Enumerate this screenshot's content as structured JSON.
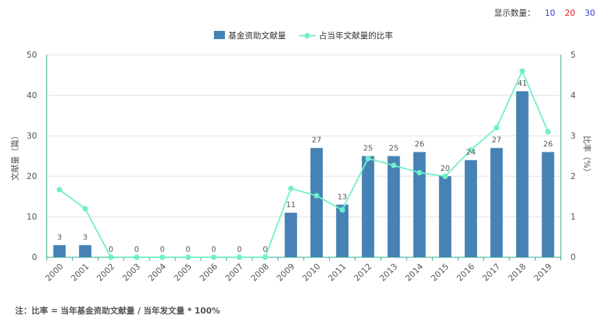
{
  "display_count": {
    "label": "显示数量：",
    "options": [
      {
        "text": "10",
        "color": "#3a3acb"
      },
      {
        "text": "20",
        "color": "#e02020"
      },
      {
        "text": "30",
        "color": "#3a3acb"
      }
    ]
  },
  "footnote": "注：比率 = 当年基金资助文献量 / 当年发文量 * 100%",
  "chart_data": {
    "type": "bar",
    "categories": [
      "2000",
      "2001",
      "2002",
      "2003",
      "2004",
      "2005",
      "2006",
      "2007",
      "2008",
      "2009",
      "2010",
      "2011",
      "2012",
      "2013",
      "2014",
      "2015",
      "2016",
      "2017",
      "2018",
      "2019"
    ],
    "series": [
      {
        "name": "基金资助文献量",
        "type": "bar",
        "axis": "left",
        "color": "#4682b4",
        "values": [
          3,
          3,
          0,
          0,
          0,
          0,
          0,
          0,
          0,
          11,
          27,
          13,
          25,
          25,
          26,
          20,
          24,
          27,
          41,
          26
        ]
      },
      {
        "name": "占当年文献量的比率",
        "type": "line",
        "axis": "right",
        "color": "#6ff0c8",
        "values": [
          1.67,
          1.2,
          0,
          0,
          0,
          0,
          0,
          0,
          0,
          1.7,
          1.52,
          1.17,
          2.44,
          2.27,
          2.09,
          2.0,
          2.65,
          3.2,
          4.6,
          3.1
        ]
      }
    ],
    "yleft": {
      "label": "文献量（篇）",
      "min": 0,
      "max": 50,
      "ticks": [
        0,
        10,
        20,
        30,
        40,
        50
      ]
    },
    "yright": {
      "label": "比率（%）",
      "min": 0,
      "max": 5,
      "ticks": [
        0,
        1,
        2,
        3,
        4,
        5
      ]
    },
    "grid": true,
    "legend": "top-center"
  }
}
